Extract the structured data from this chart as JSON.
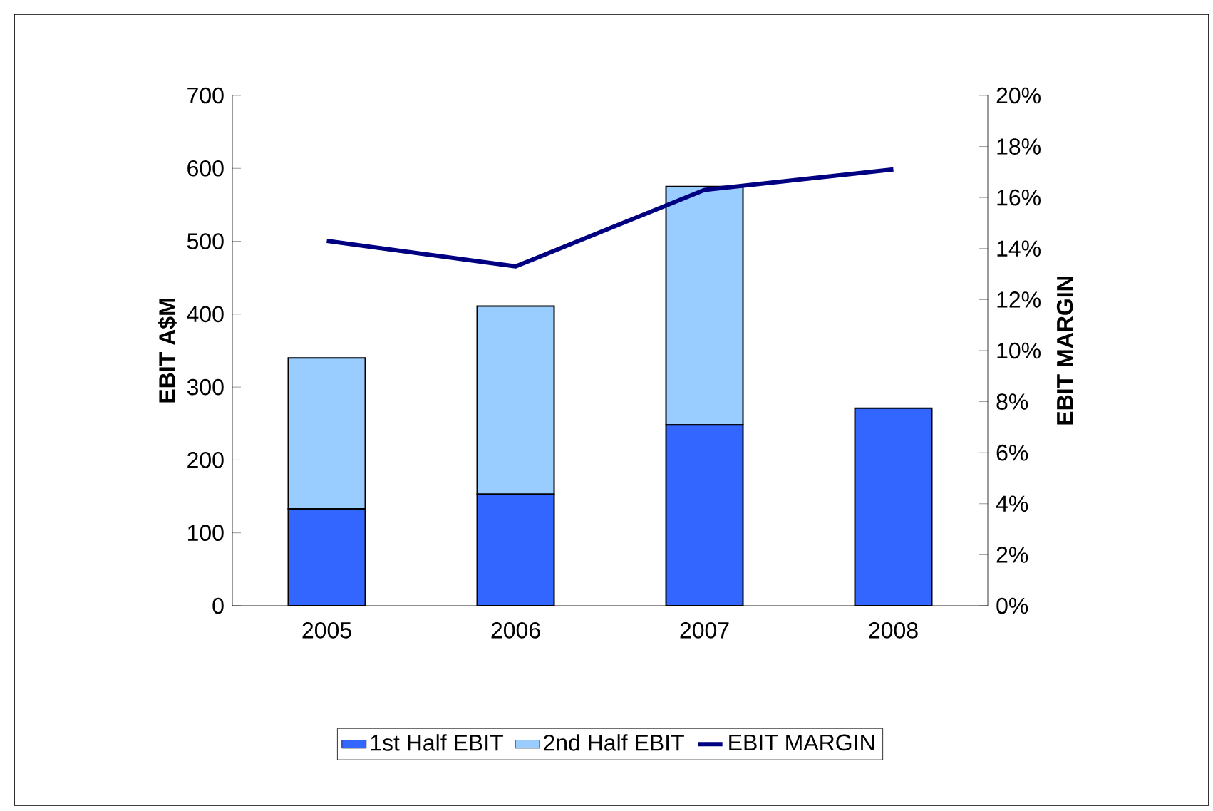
{
  "chart_data": {
    "type": "bar",
    "stacked": true,
    "categories": [
      "2005",
      "2006",
      "2007",
      "2008"
    ],
    "ylabel": "EBIT A$M",
    "y2label": "EBIT MARGIN",
    "ylim": [
      0,
      700
    ],
    "yticks": [
      0,
      100,
      200,
      300,
      400,
      500,
      600,
      700
    ],
    "y2lim": [
      0,
      20
    ],
    "y2ticks": [
      {
        "value": 0,
        "label": "0%"
      },
      {
        "value": 2,
        "label": "2%"
      },
      {
        "value": 4,
        "label": "4%"
      },
      {
        "value": 6,
        "label": "6%"
      },
      {
        "value": 8,
        "label": "8%"
      },
      {
        "value": 10,
        "label": "10%"
      },
      {
        "value": 12,
        "label": "12%"
      },
      {
        "value": 14,
        "label": "14%"
      },
      {
        "value": 16,
        "label": "16%"
      },
      {
        "value": 18,
        "label": "18%"
      },
      {
        "value": 20,
        "label": "20%"
      }
    ],
    "legend": "bottom",
    "marker": "none",
    "line_style": "solid",
    "series": [
      {
        "name": "1st Half EBIT",
        "color": "#3366ff",
        "values": [
          133,
          153,
          248,
          271
        ]
      },
      {
        "name": "2nd Half EBIT",
        "color": "#99ccff",
        "values": [
          207,
          258,
          327,
          null
        ]
      },
      {
        "name": "EBIT MARGIN",
        "type": "line",
        "axis": "y2",
        "color": "#000080",
        "values": [
          14.3,
          13.3,
          16.3,
          17.1
        ]
      }
    ]
  }
}
